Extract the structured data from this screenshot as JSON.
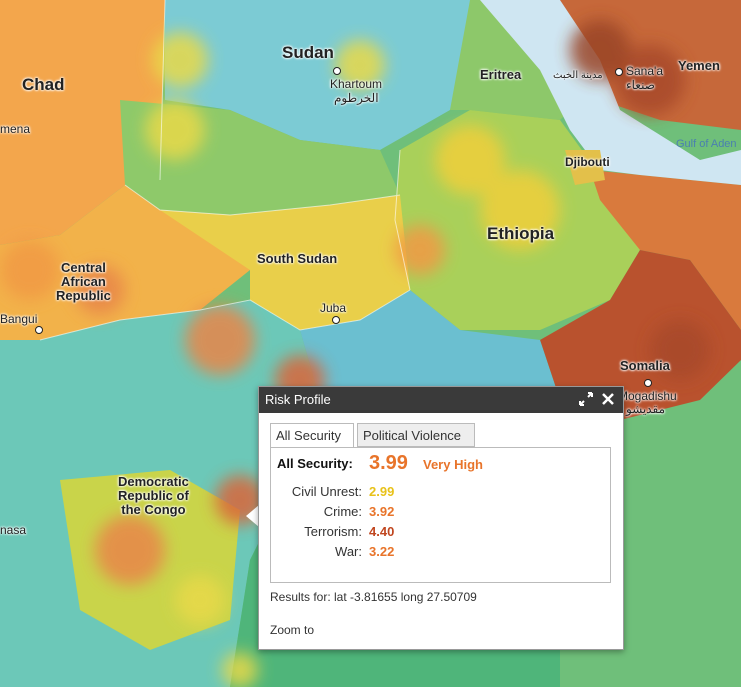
{
  "map": {
    "countries": {
      "chad": "Chad",
      "sudan": "Sudan",
      "eritrea": "Eritrea",
      "yemen": "Yemen",
      "djibouti": "Djibouti",
      "ethiopia": "Ethiopia",
      "south_sudan": "South Sudan",
      "car_1": "Central",
      "car_2": "African",
      "car_3": "Republic",
      "drc_1": "Democratic",
      "drc_2": "Republic of",
      "drc_3": "the Congo",
      "somalia": "Somalia",
      "partial_left_top": "mena",
      "partial_left_mid": "nasa"
    },
    "cities": {
      "khartoum": "Khartoum",
      "khartoum_ar": "الخرطوم",
      "sanaa": "Sana'a",
      "sanaa_ar": "صنعاء",
      "asmara_ar": "مدينة الخبث",
      "juba": "Juba",
      "bangui": "Bangui",
      "mogadishu": "Mogadishu",
      "mogadishu_ar": "مقديشو"
    },
    "water": {
      "gulf_of_aden": "Gulf of Aden"
    }
  },
  "popup": {
    "title": "Risk Profile",
    "tabs": [
      "All Security",
      "Political Violence"
    ],
    "active_tab": "All Security",
    "all_security_label": "All Security:",
    "all_security_score": "3.99",
    "all_security_level": "Very High",
    "breakdown": [
      {
        "label": "Civil Unrest:",
        "value": "2.99",
        "color": "#e8c21a"
      },
      {
        "label": "Crime:",
        "value": "3.92",
        "color": "#e8742a"
      },
      {
        "label": "Terrorism:",
        "value": "4.40",
        "color": "#c0461f"
      },
      {
        "label": "War:",
        "value": "3.22",
        "color": "#e8742a"
      }
    ],
    "results_for": "Results for: lat -3.81655 long 27.50709",
    "zoom_to": "Zoom to"
  },
  "colors": {
    "low": "#5db86a",
    "moderate": "#b8d24a",
    "medium": "#f2cf3f",
    "high": "#f19a45",
    "very_high": "#b9522e",
    "teal": "#6cc8b8",
    "water": "#cfe6f2"
  }
}
